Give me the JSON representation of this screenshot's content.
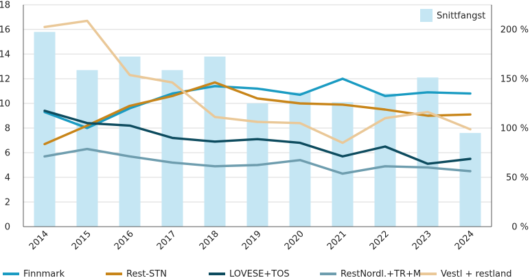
{
  "chart_data": {
    "type": "bar+line",
    "categories": [
      "2014",
      "2015",
      "2016",
      "2017",
      "2018",
      "2019",
      "2020",
      "2021",
      "2022",
      "2023",
      "2024"
    ],
    "bars": {
      "name": "Snittfangst",
      "color": "#c5e6f3",
      "axis": "right",
      "values": [
        197.5,
        158.75,
        172.5,
        158.75,
        172.5,
        125,
        136.25,
        126.25,
        135,
        151.25,
        95
      ]
    },
    "series": [
      {
        "name": "Finnmark",
        "color": "#1a9bc2",
        "values": [
          9.3,
          8.0,
          9.6,
          10.8,
          11.4,
          11.2,
          10.7,
          12.0,
          10.6,
          10.9,
          10.8
        ]
      },
      {
        "name": "Rest-STN",
        "color": "#c88519",
        "values": [
          6.7,
          8.2,
          9.8,
          10.6,
          11.7,
          10.4,
          10.0,
          9.9,
          9.5,
          9.0,
          9.1
        ]
      },
      {
        "name": "LOVESE+TOS",
        "color": "#0d4b5e",
        "values": [
          9.4,
          8.4,
          8.2,
          7.2,
          6.9,
          7.1,
          6.8,
          5.7,
          6.5,
          5.1,
          5.5
        ]
      },
      {
        "name": "RestNordl.+TR+M",
        "color": "#6e9dae",
        "values": [
          5.7,
          6.3,
          5.7,
          5.2,
          4.9,
          5.0,
          5.4,
          4.3,
          4.9,
          4.8,
          4.5
        ]
      },
      {
        "name": "Vestl + restland",
        "color": "#eac898",
        "values": [
          16.2,
          16.7,
          12.3,
          11.7,
          8.9,
          8.5,
          8.4,
          6.8,
          8.8,
          9.3,
          7.9
        ]
      }
    ],
    "ylim": [
      0,
      18
    ],
    "yticks": [
      "0",
      "2",
      "4",
      "6",
      "8",
      "10",
      "12",
      "14",
      "16",
      "18"
    ],
    "y2lim": [
      0,
      225
    ],
    "y2ticks": [
      "0 %",
      "50 %",
      "100 %",
      "150 %",
      "200 %"
    ],
    "y2values": [
      0,
      50,
      100,
      150,
      200
    ],
    "grid": true,
    "legend": "bottom"
  }
}
